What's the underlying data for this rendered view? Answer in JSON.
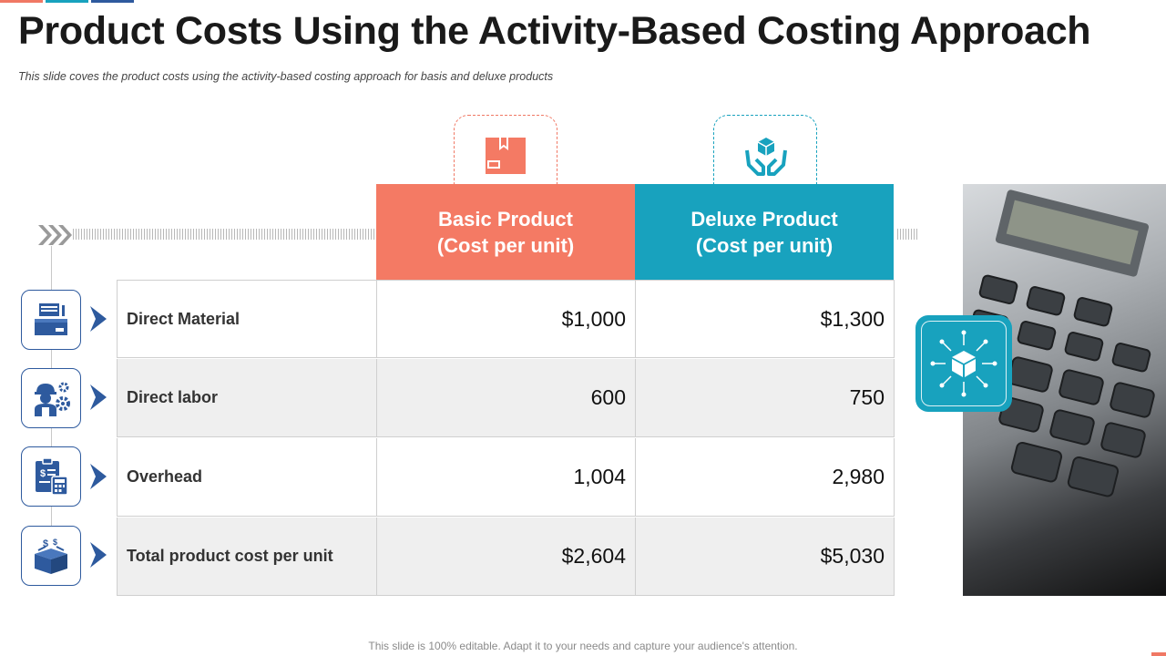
{
  "title": "Product Costs Using the Activity-Based Costing Approach",
  "subtitle": "This slide coves the product costs using the activity-based costing approach  for basis and deluxe products",
  "headers": {
    "basic": {
      "line1": "Basic Product",
      "line2": "(Cost per unit)",
      "icon": "product-box-icon"
    },
    "deluxe": {
      "line1": "Deluxe Product",
      "line2": "(Cost per unit)",
      "icon": "hands-cube-icon"
    }
  },
  "rows": [
    {
      "label": "Direct Material",
      "basic": "$1,000",
      "deluxe": "$1,300",
      "icon": "materials-icon"
    },
    {
      "label": "Direct labor",
      "basic": "600",
      "deluxe": "750",
      "icon": "worker-gears-icon"
    },
    {
      "label": "Overhead",
      "basic": "1,004",
      "deluxe": "2,980",
      "icon": "clipboard-calculator-icon"
    },
    {
      "label": "Total product cost per unit",
      "basic": "$2,604",
      "deluxe": "$5,030",
      "icon": "money-box-icon"
    }
  ],
  "footer": "This slide is 100% editable. Adapt it to your needs and capture your audience's attention.",
  "colors": {
    "coral": "#f47a64",
    "teal": "#18a2be",
    "navy": "#2e5a9e"
  }
}
